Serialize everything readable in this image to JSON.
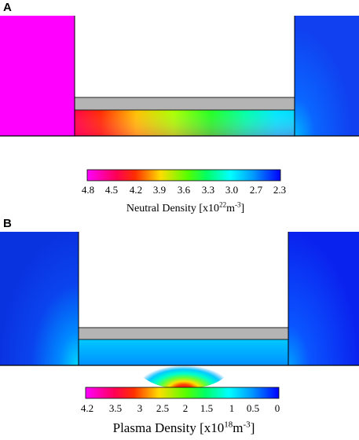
{
  "panels": [
    {
      "label": "A",
      "colorbar": {
        "ticks": [
          "4.8",
          "4.5",
          "4.2",
          "3.9",
          "3.6",
          "3.3",
          "3.0",
          "2.7",
          "2.3"
        ],
        "title_main": "Neutral Density [x10",
        "title_exp": "22",
        "title_unit": "m",
        "title_unit_exp": "-3",
        "title_close": "]"
      }
    },
    {
      "label": "B",
      "colorbar": {
        "ticks": [
          "4.2",
          "3.5",
          "3",
          "2.5",
          "2",
          "1.5",
          "1",
          "0.5",
          "0"
        ],
        "title_main": "Plasma Density [x10",
        "title_exp": "18",
        "title_unit": "m",
        "title_unit_exp": "-3",
        "title_close": "]"
      }
    }
  ],
  "colors": {
    "magenta": "#ff00ff",
    "red": "#ff0000",
    "yellow": "#ffff00",
    "green": "#00ff00",
    "cyan": "#00ffff",
    "blue": "#0000ff",
    "plate": "#b4b4b4"
  }
}
